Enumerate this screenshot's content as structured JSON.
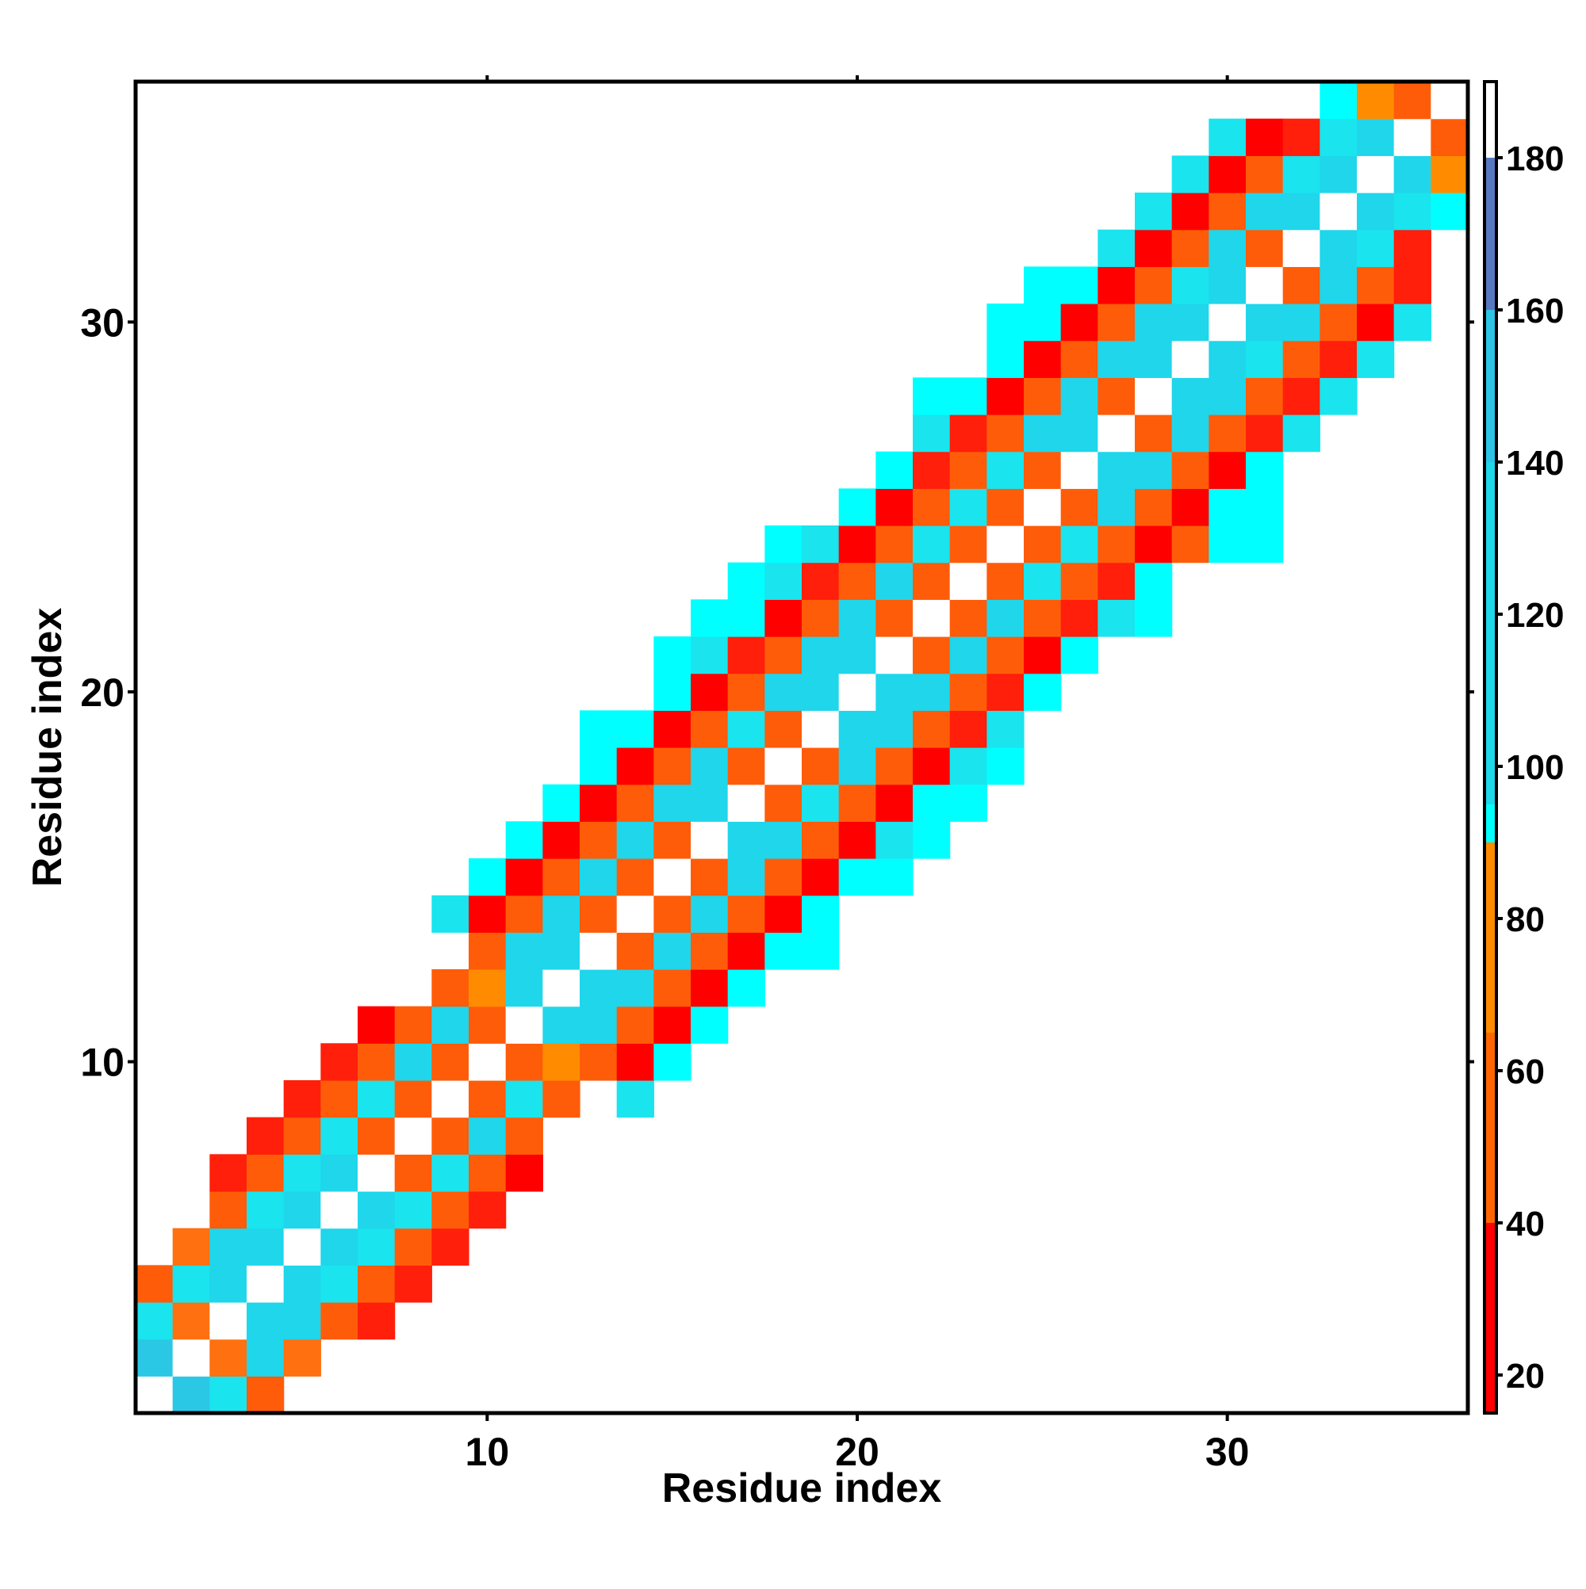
{
  "chart_data": {
    "type": "heatmap",
    "title": "",
    "xlabel": "Residue index",
    "ylabel": "Residue index",
    "xlim": [
      0.5,
      36.5
    ],
    "ylim": [
      0.5,
      36.5
    ],
    "x_ticks": [
      10,
      20,
      30
    ],
    "y_ticks": [
      10,
      20,
      30
    ],
    "grid": false,
    "legend": "colorbar-right",
    "colorbar": {
      "range": [
        15,
        190
      ],
      "ticks": [
        20,
        40,
        60,
        80,
        100,
        120,
        140,
        160,
        180
      ],
      "colors": [
        "#ff0000",
        "#ff6600",
        "#ff8c00",
        "#00ffff",
        "#1fd6eb",
        "#2dc3e6",
        "#5878c2",
        "#ffffff"
      ],
      "stops": [
        15,
        40,
        65,
        90,
        95,
        140,
        160,
        180,
        190
      ]
    },
    "color_map": {
      "R": "#ff0000",
      "r": "#ff1f0a",
      "O": "#ff5c0a",
      "o": "#ff7010",
      "A": "#ff8c00",
      "C": "#00ffff",
      "c": "#1ae4ee",
      "B": "#1fd6eb",
      "b": "#2bc8e6",
      "W": "#ffffff"
    },
    "rows": [
      {
        "y": 1,
        "x_start": 1,
        "cells": "WbcO"
      },
      {
        "y": 2,
        "x_start": 1,
        "cells": "bWoBo"
      },
      {
        "y": 3,
        "x_start": 1,
        "cells": "coWBBOr"
      },
      {
        "y": 4,
        "x_start": 1,
        "cells": "OcBWBcOr"
      },
      {
        "y": 5,
        "x_start": 2,
        "cells": "oBBWBcOr"
      },
      {
        "y": 6,
        "x_start": 3,
        "cells": "OcBWBcOr"
      },
      {
        "y": 7,
        "x_start": 3,
        "cells": "rOcBWOcOR"
      },
      {
        "y": 8,
        "x_start": 4,
        "cells": "rOcOWOBO"
      },
      {
        "y": 9,
        "x_start": 5,
        "cells": "rOcOWOcO"
      },
      {
        "y": 9,
        "x_start": 14,
        "cells": "c"
      },
      {
        "y": 10,
        "x_start": 6,
        "cells": "rOBOWOAOR"
      },
      {
        "y": 10,
        "x_start": 15,
        "cells": "C"
      },
      {
        "y": 11,
        "x_start": 7,
        "cells": "ROBOWBBORC"
      },
      {
        "y": 12,
        "x_start": 9,
        "cells": "OABWBBORC"
      },
      {
        "y": 13,
        "x_start": 10,
        "cells": "OBBWOBORCC"
      },
      {
        "y": 14,
        "x_start": 9,
        "cells": "cROBOWOBORC"
      },
      {
        "y": 15,
        "x_start": 10,
        "cells": "CROBOWOBORCC"
      },
      {
        "y": 16,
        "x_start": 11,
        "cells": "CROBOWBBORcC"
      },
      {
        "y": 17,
        "x_start": 12,
        "cells": "CROBBWOcORCC"
      },
      {
        "y": 18,
        "x_start": 13,
        "cells": "CROBOWOBORcC"
      },
      {
        "y": 19,
        "x_start": 13,
        "cells": "CCROcOWBBOrc"
      },
      {
        "y": 20,
        "x_start": 15,
        "cells": "CROBBWBBOrC"
      },
      {
        "y": 21,
        "x_start": 15,
        "cells": "CcrOBBWOBORC"
      },
      {
        "y": 22,
        "x_start": 16,
        "cells": "CCROBOWOBOrcC"
      },
      {
        "y": 23,
        "x_start": 17,
        "cells": "CcrOBOWOcOrC"
      },
      {
        "y": 24,
        "x_start": 18,
        "cells": "CcROcOWOcOROCC"
      },
      {
        "y": 25,
        "x_start": 20,
        "cells": "CROcOWOBORCC"
      },
      {
        "y": 26,
        "x_start": 21,
        "cells": "CrOcOWBBORC"
      },
      {
        "y": 27,
        "x_start": 22,
        "cells": "crOBBWOBOrc"
      },
      {
        "y": 28,
        "x_start": 22,
        "cells": "CCROBOWBBOrc"
      },
      {
        "y": 29,
        "x_start": 24,
        "cells": "CROBBWBcOrc"
      },
      {
        "y": 30,
        "x_start": 24,
        "cells": "CCROBBWBBORc"
      },
      {
        "y": 31,
        "x_start": 25,
        "cells": "CCROcBWOBOr"
      },
      {
        "y": 32,
        "x_start": 27,
        "cells": "cROBOWBcr"
      },
      {
        "y": 33,
        "x_start": 28,
        "cells": "cROBBWBcC"
      },
      {
        "y": 34,
        "x_start": 29,
        "cells": "cROcBWBA"
      },
      {
        "y": 35,
        "x_start": 30,
        "cells": "cRrcBWO"
      },
      {
        "y": 36,
        "x_start": 33,
        "cells": "CAOW"
      }
    ]
  }
}
